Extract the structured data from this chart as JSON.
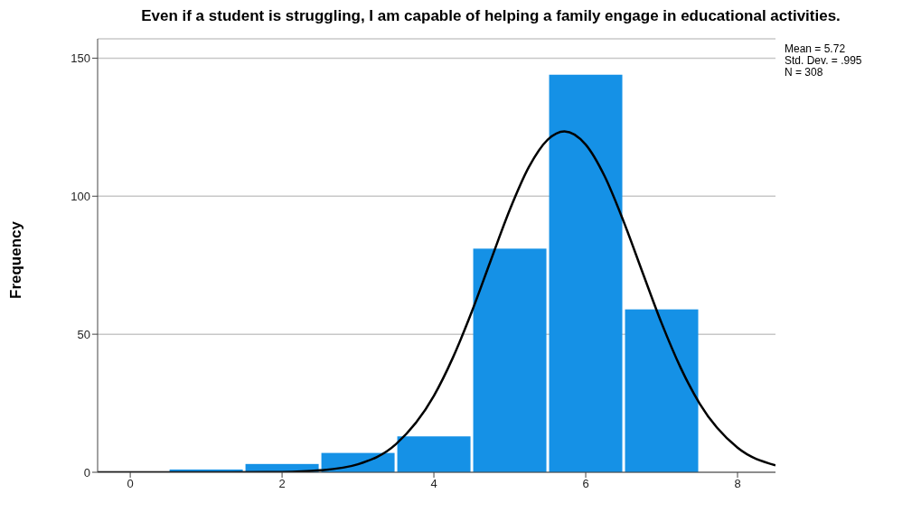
{
  "chart_data": {
    "type": "histogram",
    "title": "Even if a student is struggling, I am capable of helping a family engage in educational activities.",
    "ylabel": "Frequency",
    "bins": [
      0.5,
      1.5,
      2.5,
      3.5,
      4.5,
      5.5,
      6.5,
      7.5
    ],
    "values": [
      1,
      3,
      7,
      13,
      81,
      144,
      59
    ],
    "color": "#1591e6",
    "series": [
      {
        "type": "line",
        "color": "#000000",
        "x": [
          -0.43,
          1,
          2,
          2.5,
          3,
          3.5,
          4,
          4.25,
          4.5,
          4.75,
          5,
          5.25,
          5.5,
          5.72,
          6,
          6.25,
          6.5,
          6.75,
          7,
          7.25,
          7.5,
          8,
          8.5
        ],
        "values": [
          0,
          0,
          0.1,
          0.7,
          2.9,
          10.2,
          27.7,
          41.5,
          58.2,
          76.8,
          95.1,
          110.5,
          120.5,
          123.5,
          118.7,
          107.2,
          90.8,
          72.3,
          54.0,
          37.9,
          24.9,
          8.9,
          2.5
        ]
      }
    ],
    "xlim": [
      -0.43,
      8.5
    ],
    "xticks": [
      0,
      2,
      4,
      6,
      8
    ],
    "ylim": [
      0,
      157
    ],
    "yticks": [
      0,
      50,
      100,
      150
    ],
    "grid": "y",
    "marker": "none",
    "line_style": "solid",
    "annotations": [
      "Mean = 5.72",
      "Std. Dev. = .995",
      "N = 308"
    ]
  }
}
